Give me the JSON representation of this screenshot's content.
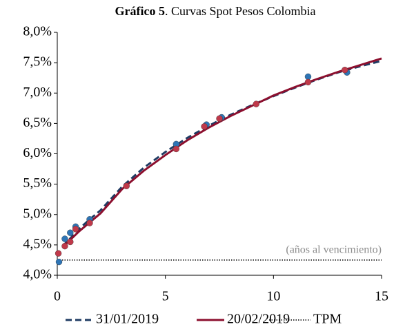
{
  "chart_data": {
    "type": "line",
    "title_bold": "Gráfico 5",
    "title": ". Curvas Spot Pesos Colombia",
    "annotation": "(años al vencimiento)",
    "xlim": [
      0,
      15
    ],
    "xticks": [
      0,
      5,
      10,
      15
    ],
    "ylim": [
      4.0,
      8.0
    ],
    "yticks": [
      {
        "value": 4.0,
        "label": "4,0%"
      },
      {
        "value": 4.5,
        "label": "4,5%"
      },
      {
        "value": 5.0,
        "label": "5,0%"
      },
      {
        "value": 5.5,
        "label": "5,5%"
      },
      {
        "value": 6.0,
        "label": "6,0%"
      },
      {
        "value": 6.5,
        "label": "6,5%"
      },
      {
        "value": 7.0,
        "label": "7,0%"
      },
      {
        "value": 7.5,
        "label": "7,5%"
      },
      {
        "value": 8.0,
        "label": "8,0%"
      }
    ],
    "grid": false,
    "series": [
      {
        "name": "31/01/2019",
        "color": "#1f3b63",
        "style": "dashed",
        "x": [
          0.25,
          0.5,
          1,
          1.5,
          2,
          3,
          4,
          5,
          6,
          7,
          8,
          9,
          10,
          11,
          12,
          13,
          14,
          15
        ],
        "values": [
          4.48,
          4.57,
          4.76,
          4.92,
          5.07,
          5.46,
          5.77,
          6.03,
          6.26,
          6.46,
          6.64,
          6.8,
          6.95,
          7.09,
          7.22,
          7.34,
          7.44,
          7.53
        ]
      },
      {
        "name": "20/02/2019",
        "color": "#8c0f2e",
        "style": "solid",
        "x": [
          0.25,
          0.5,
          1,
          1.5,
          2,
          3,
          4,
          5,
          6,
          7,
          8,
          9,
          10,
          11,
          12,
          13,
          14,
          15
        ],
        "values": [
          4.47,
          4.55,
          4.72,
          4.87,
          5.02,
          5.42,
          5.72,
          5.98,
          6.22,
          6.43,
          6.62,
          6.79,
          6.96,
          7.1,
          7.23,
          7.35,
          7.46,
          7.57
        ]
      },
      {
        "name": "TPM",
        "color": "#000000",
        "style": "dotted",
        "x": [
          0,
          15
        ],
        "values": [
          4.25,
          4.25
        ]
      }
    ],
    "points": [
      {
        "color": "#2e75b6",
        "x": [
          0.08,
          0.35,
          0.6,
          0.85,
          1.5,
          5.5,
          6.9,
          7.6,
          11.6,
          13.4
        ],
        "values": [
          4.22,
          4.6,
          4.7,
          4.8,
          4.92,
          6.16,
          6.48,
          6.6,
          7.27,
          7.34
        ]
      },
      {
        "color": "#c0394a",
        "x": [
          0.05,
          0.35,
          0.6,
          0.85,
          1.5,
          3.2,
          5.5,
          6.8,
          7.5,
          9.2,
          11.6,
          13.3
        ],
        "values": [
          4.36,
          4.48,
          4.55,
          4.76,
          4.86,
          5.47,
          6.08,
          6.45,
          6.58,
          6.82,
          7.18,
          7.38
        ]
      }
    ]
  }
}
